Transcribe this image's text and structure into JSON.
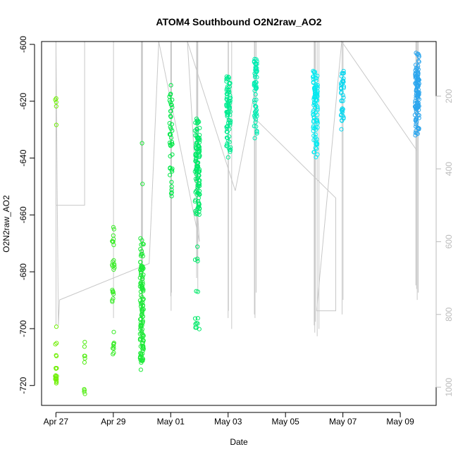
{
  "chart_data": {
    "type": "scatter",
    "title": "ATOM4 Southbound O2N2raw_AO2",
    "xlabel": "Date",
    "ylabel": "O2N2raw_AO2",
    "x_tick_labels": [
      "Apr 27",
      "Apr 29",
      "May 01",
      "May 03",
      "May 05",
      "May 07",
      "May 09"
    ],
    "x_tick_dates": [
      "2019-04-27",
      "2019-04-29",
      "2019-05-01",
      "2019-05-03",
      "2019-05-05",
      "2019-05-07",
      "2019-05-09"
    ],
    "xlim": [
      "2019-04-26 12:00",
      "2019-05-10 06:00"
    ],
    "ylim": [
      -727,
      -599
    ],
    "y_ticks": [
      -600,
      -620,
      -640,
      -660,
      -680,
      -700,
      -720
    ],
    "y2_ticks": [
      200,
      400,
      600,
      800,
      1000
    ],
    "y2lim": [
      50,
      1050
    ],
    "y2_reversed": true,
    "grid": false,
    "colors": {
      "trace": "#c8c8c8",
      "axis": "#000000",
      "axis2": "#bbbbbb",
      "gradient": [
        "#7ff000",
        "#00e84a",
        "#00f0f0",
        "#3399ee"
      ]
    },
    "trace_polyline": [
      [
        "2019-04-27 00:00",
        280
      ],
      [
        "2019-04-27 00:00",
        50
      ],
      [
        "2019-04-27 00:00",
        500
      ],
      [
        "2019-04-28 00:00",
        500
      ],
      [
        "2019-04-28 00:00",
        50
      ],
      [
        "2019-04-27 00:00",
        50
      ],
      [
        "2019-04-27 02:00",
        830
      ],
      [
        "2019-04-27 03:00",
        760
      ],
      [
        "2019-04-30 06:00",
        660
      ],
      [
        "2019-04-30 14:00",
        50
      ],
      [
        "2019-05-02 00:00",
        600
      ],
      [
        "2019-05-01 14:00",
        50
      ],
      [
        "2019-05-03 06:00",
        460
      ],
      [
        "2019-05-03 22:00",
        190
      ],
      [
        "2019-05-03 22:00",
        260
      ],
      [
        "2019-05-06 18:00",
        480
      ],
      [
        "2019-05-06 18:00",
        790
      ],
      [
        "2019-05-06 02:00",
        790
      ],
      [
        "2019-05-06 23:00",
        50
      ],
      [
        "2019-05-09 14:00",
        350
      ]
    ],
    "casts": [
      {
        "x": "2019-04-27 00:05",
        "bottom": 830
      },
      {
        "x": "2019-04-29 00:10",
        "bottom": 810
      },
      {
        "x": "2019-04-29 23:30",
        "bottom": 870
      },
      {
        "x": "2019-04-29 23:50",
        "bottom": 830
      },
      {
        "x": "2019-04-30 00:10",
        "bottom": 780
      },
      {
        "x": "2019-04-30 00:25",
        "bottom": 860
      },
      {
        "x": "2019-05-01 00:00",
        "bottom": 750
      },
      {
        "x": "2019-05-01 00:20",
        "bottom": 790
      },
      {
        "x": "2019-05-01 00:40",
        "bottom": 740
      },
      {
        "x": "2019-05-01 21:40",
        "bottom": 700
      },
      {
        "x": "2019-05-01 22:10",
        "bottom": 650
      },
      {
        "x": "2019-05-01 22:40",
        "bottom": 740
      },
      {
        "x": "2019-05-03 00:00",
        "bottom": 810
      },
      {
        "x": "2019-05-03 00:20",
        "bottom": 790
      },
      {
        "x": "2019-05-03 03:00",
        "bottom": 840
      },
      {
        "x": "2019-05-03 22:00",
        "bottom": 800
      },
      {
        "x": "2019-05-03 22:30",
        "bottom": 810
      },
      {
        "x": "2019-05-03 23:30",
        "bottom": 740
      },
      {
        "x": "2019-05-06 00:00",
        "bottom": 830
      },
      {
        "x": "2019-05-06 00:30",
        "bottom": 850
      },
      {
        "x": "2019-05-06 01:00",
        "bottom": 820
      },
      {
        "x": "2019-05-06 02:30",
        "bottom": 860
      },
      {
        "x": "2019-05-06 04:00",
        "bottom": 840
      },
      {
        "x": "2019-05-06 23:20",
        "bottom": 800
      },
      {
        "x": "2019-05-07 00:10",
        "bottom": 760
      },
      {
        "x": "2019-05-09 13:00",
        "bottom": 720
      },
      {
        "x": "2019-05-09 13:40",
        "bottom": 730
      },
      {
        "x": "2019-05-09 14:10",
        "bottom": 760
      },
      {
        "x": "2019-05-09 15:00",
        "bottom": 740
      }
    ],
    "clusters": [
      {
        "x": "2019-04-27 00:00",
        "spread_hours": 1.5,
        "ranges": [
          [
            -623,
            -619,
            4
          ],
          [
            -630,
            -628,
            1
          ],
          [
            -700,
            -698,
            1
          ],
          [
            -711,
            -704,
            4
          ],
          [
            -720,
            -713,
            14
          ]
        ]
      },
      {
        "x": "2019-04-28 00:00",
        "spread_hours": 1.5,
        "ranges": [
          [
            -705,
            -702,
            1
          ],
          [
            -712,
            -706,
            5
          ],
          [
            -723,
            -717,
            4
          ]
        ]
      },
      {
        "x": "2019-04-29 00:00",
        "spread_hours": 2,
        "ranges": [
          [
            -666,
            -664,
            2
          ],
          [
            -672,
            -667,
            6
          ],
          [
            -682,
            -675,
            8
          ],
          [
            -692,
            -686,
            8
          ],
          [
            -702,
            -701,
            1
          ],
          [
            -709,
            -705,
            8
          ]
        ]
      },
      {
        "x": "2019-04-29 23:50",
        "spread_hours": 3,
        "ranges": [
          [
            -635,
            -634,
            1
          ],
          [
            -650,
            -648,
            1
          ],
          [
            -678,
            -667,
            14
          ],
          [
            -690,
            -678,
            40
          ],
          [
            -700,
            -690,
            30
          ],
          [
            -712,
            -700,
            40
          ],
          [
            -716,
            -714,
            1
          ]
        ]
      },
      {
        "x": "2019-05-01 00:10",
        "spread_hours": 2.5,
        "ranges": [
          [
            -620,
            -614,
            6
          ],
          [
            -630,
            -620,
            12
          ],
          [
            -640,
            -630,
            14
          ],
          [
            -646,
            -640,
            6
          ],
          [
            -654,
            -648,
            6
          ]
        ]
      },
      {
        "x": "2019-05-01 22:20",
        "spread_hours": 4,
        "ranges": [
          [
            -633,
            -626,
            20
          ],
          [
            -650,
            -633,
            70
          ],
          [
            -660,
            -650,
            30
          ],
          [
            -678,
            -668,
            4
          ],
          [
            -688,
            -686,
            2
          ],
          [
            -701,
            -696,
            8
          ]
        ]
      },
      {
        "x": "2019-05-03 00:20",
        "spread_hours": 3.5,
        "ranges": [
          [
            -614,
            -611,
            10
          ],
          [
            -622,
            -614,
            30
          ],
          [
            -630,
            -622,
            25
          ],
          [
            -636,
            -630,
            10
          ],
          [
            -641,
            -636,
            6
          ]
        ]
      },
      {
        "x": "2019-05-03 23:00",
        "spread_hours": 2.5,
        "ranges": [
          [
            -610,
            -605,
            20
          ],
          [
            -620,
            -610,
            20
          ],
          [
            -628,
            -620,
            15
          ],
          [
            -633,
            -628,
            6
          ]
        ]
      },
      {
        "x": "2019-05-06 01:00",
        "spread_hours": 4,
        "ranges": [
          [
            -614,
            -609,
            14
          ],
          [
            -620,
            -614,
            30
          ],
          [
            -630,
            -620,
            30
          ],
          [
            -635,
            -630,
            10
          ],
          [
            -640,
            -635,
            8
          ]
        ]
      },
      {
        "x": "2019-05-06 23:40",
        "spread_hours": 2.5,
        "ranges": [
          [
            -614,
            -609,
            12
          ],
          [
            -620,
            -614,
            14
          ],
          [
            -626,
            -620,
            10
          ],
          [
            -630,
            -626,
            4
          ]
        ]
      },
      {
        "x": "2019-05-09 14:00",
        "spread_hours": 3.5,
        "ranges": [
          [
            -608,
            -603,
            10
          ],
          [
            -615,
            -608,
            40
          ],
          [
            -625,
            -615,
            50
          ],
          [
            -632,
            -625,
            20
          ]
        ]
      }
    ]
  }
}
